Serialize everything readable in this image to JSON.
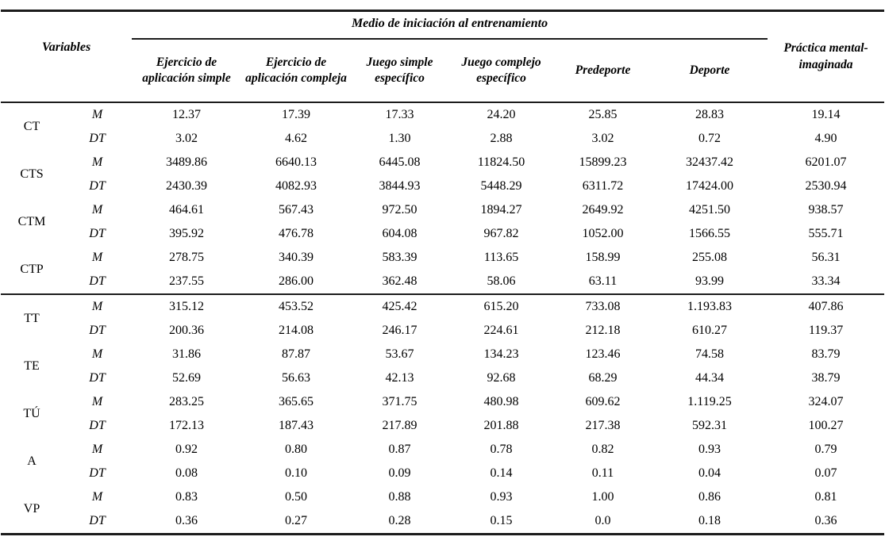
{
  "table": {
    "spanner_label": "Medio de iniciación al entrenamiento",
    "variables_header": "Variables",
    "columns": [
      "Ejercicio de aplicación simple",
      "Ejercicio de aplicación compleja",
      "Juego simple específico",
      "Juego complejo específico",
      "Predeporte",
      "Deporte"
    ],
    "last_column": "Práctica mental-imaginada",
    "stat_labels": {
      "M": "M",
      "DT": "DT"
    },
    "rows": [
      {
        "variable": "CT",
        "M": [
          "12.37",
          "17.39",
          "17.33",
          "24.20",
          "25.85",
          "28.83",
          "19.14"
        ],
        "DT": [
          "3.02",
          "4.62",
          "1.30",
          "2.88",
          "3.02",
          "0.72",
          "4.90"
        ],
        "section_end": false
      },
      {
        "variable": "CTS",
        "M": [
          "3489.86",
          "6640.13",
          "6445.08",
          "11824.50",
          "15899.23",
          "32437.42",
          "6201.07"
        ],
        "DT": [
          "2430.39",
          "4082.93",
          "3844.93",
          "5448.29",
          "6311.72",
          "17424.00",
          "2530.94"
        ],
        "section_end": false
      },
      {
        "variable": "CTM",
        "M": [
          "464.61",
          "567.43",
          "972.50",
          "1894.27",
          "2649.92",
          "4251.50",
          "938.57"
        ],
        "DT": [
          "395.92",
          "476.78",
          "604.08",
          "967.82",
          "1052.00",
          "1566.55",
          "555.71"
        ],
        "section_end": false
      },
      {
        "variable": "CTP",
        "M": [
          "278.75",
          "340.39",
          "583.39",
          "113.65",
          "158.99",
          "255.08",
          "56.31"
        ],
        "DT": [
          "237.55",
          "286.00",
          "362.48",
          "58.06",
          "63.11",
          "93.99",
          "33.34"
        ],
        "section_end": true
      },
      {
        "variable": "TT",
        "M": [
          "315.12",
          "453.52",
          "425.42",
          "615.20",
          "733.08",
          "1.193.83",
          "407.86"
        ],
        "DT": [
          "200.36",
          "214.08",
          "246.17",
          "224.61",
          "212.18",
          "610.27",
          "119.37"
        ],
        "section_end": false
      },
      {
        "variable": "TE",
        "M": [
          "31.86",
          "87.87",
          "53.67",
          "134.23",
          "123.46",
          "74.58",
          "83.79"
        ],
        "DT": [
          "52.69",
          "56.63",
          "42.13",
          "92.68",
          "68.29",
          "44.34",
          "38.79"
        ],
        "section_end": false
      },
      {
        "variable": "TÚ",
        "M": [
          "283.25",
          "365.65",
          "371.75",
          "480.98",
          "609.62",
          "1.119.25",
          "324.07"
        ],
        "DT": [
          "172.13",
          "187.43",
          "217.89",
          "201.88",
          "217.38",
          "592.31",
          "100.27"
        ],
        "section_end": false
      },
      {
        "variable": "A",
        "M": [
          "0.92",
          "0.80",
          "0.87",
          "0.78",
          "0.82",
          "0.93",
          "0.79"
        ],
        "DT": [
          "0.08",
          "0.10",
          "0.09",
          "0.14",
          "0.11",
          "0.04",
          "0.07"
        ],
        "section_end": false
      },
      {
        "variable": "VP",
        "M": [
          "0.83",
          "0.50",
          "0.88",
          "0.93",
          "1.00",
          "0.86",
          "0.81"
        ],
        "DT": [
          "0.36",
          "0.27",
          "0.28",
          "0.15",
          "0.0",
          "0.18",
          "0.36"
        ],
        "section_end": false
      }
    ]
  }
}
